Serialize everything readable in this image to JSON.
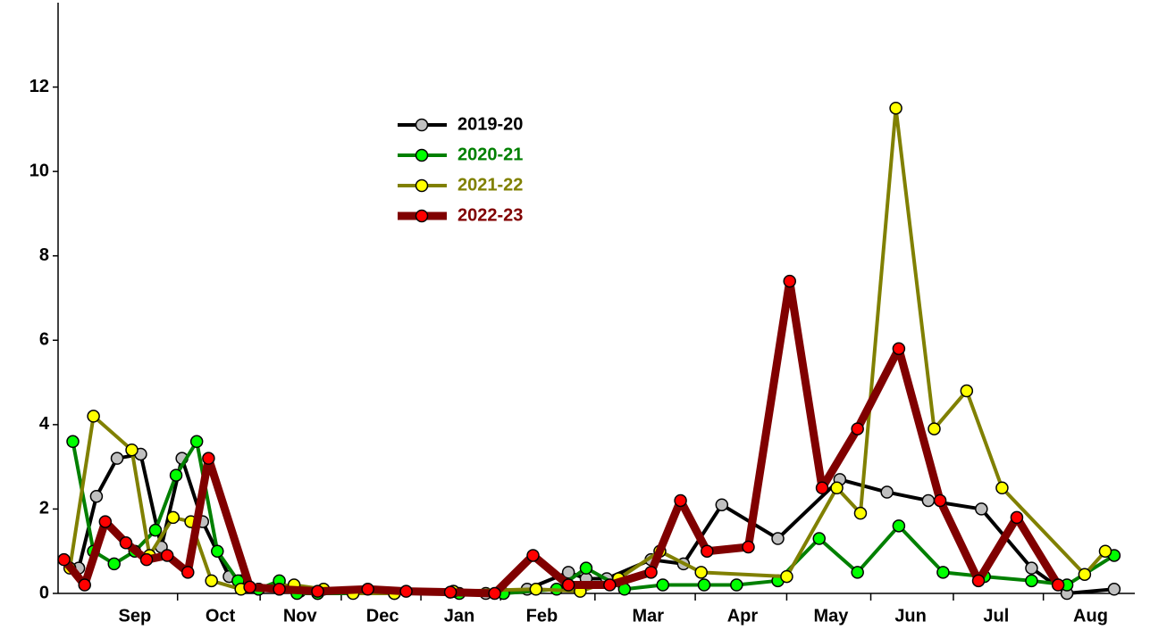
{
  "chart_data": {
    "type": "line",
    "xlim": [
      0,
      365
    ],
    "xticks": [
      {
        "value": 26,
        "label": "Sep"
      },
      {
        "value": 55,
        "label": "Oct"
      },
      {
        "value": 82,
        "label": "Nov"
      },
      {
        "value": 110,
        "label": "Dec"
      },
      {
        "value": 136,
        "label": "Jan"
      },
      {
        "value": 164,
        "label": "Feb"
      },
      {
        "value": 200,
        "label": "Mar"
      },
      {
        "value": 232,
        "label": "Apr"
      },
      {
        "value": 262,
        "label": "May"
      },
      {
        "value": 289,
        "label": "Jun"
      },
      {
        "value": 318,
        "label": "Jul"
      },
      {
        "value": 350,
        "label": "Aug"
      }
    ],
    "ylim": [
      0,
      14
    ],
    "yticks": [
      0,
      2,
      4,
      6,
      8,
      10,
      12
    ],
    "legend": "upper-center",
    "series": [
      {
        "name": "2019-20",
        "color": "#000000",
        "marker_color": "#c0c0c0",
        "line_width": 4,
        "x": [
          7,
          13,
          20,
          28,
          35,
          42,
          49,
          58,
          62,
          68,
          75,
          82,
          88,
          134,
          145,
          159,
          173,
          179,
          186,
          201,
          212,
          225,
          244,
          265,
          281,
          295,
          313,
          330,
          342,
          358
        ],
        "values": [
          0.6,
          2.3,
          3.2,
          3.3,
          1.1,
          3.2,
          1.7,
          0.4,
          0.3,
          0.1,
          0.1,
          0.05,
          0,
          0.05,
          0,
          0.1,
          0.5,
          0.35,
          0.35,
          0.8,
          0.7,
          2.1,
          1.3,
          2.7,
          2.4,
          2.2,
          2.0,
          0.6,
          0,
          0.1
        ]
      },
      {
        "name": "2020-21",
        "color": "#008000",
        "marker_color": "#00ff00",
        "line_width": 4,
        "x": [
          5,
          12,
          19,
          26,
          33,
          40,
          47,
          54,
          61,
          68,
          75,
          81,
          88,
          114,
          136,
          151,
          169,
          179,
          192,
          205,
          219,
          230,
          244,
          258,
          271,
          285,
          300,
          314,
          330,
          342,
          358
        ],
        "values": [
          3.6,
          1.0,
          0.7,
          1.0,
          1.5,
          2.8,
          3.6,
          1.0,
          0.3,
          0.1,
          0.3,
          0,
          0,
          0,
          0,
          0,
          0.1,
          0.6,
          0.1,
          0.2,
          0.2,
          0.2,
          0.3,
          1.3,
          0.5,
          1.6,
          0.5,
          0.4,
          0.3,
          0.2,
          0.9
        ]
      },
      {
        "name": "2021-22",
        "color": "#808000",
        "marker_color": "#ffff00",
        "line_width": 4,
        "x": [
          4,
          12,
          25,
          31,
          39,
          45,
          52,
          62,
          80,
          90,
          100,
          114,
          134,
          162,
          177,
          190,
          204,
          218,
          247,
          264,
          272,
          284,
          297,
          308,
          320,
          348,
          355
        ],
        "values": [
          0.6,
          4.2,
          3.4,
          0.9,
          1.8,
          1.7,
          0.3,
          0.1,
          0.2,
          0.1,
          0,
          0,
          0.05,
          0.1,
          0.05,
          0.35,
          1.0,
          0.5,
          0.4,
          2.5,
          1.9,
          11.5,
          3.9,
          4.8,
          2.5,
          0.45,
          1.0
        ]
      },
      {
        "name": "2022-23",
        "color": "#800000",
        "marker_color": "#ff0000",
        "line_width": 9,
        "x": [
          2,
          9,
          16,
          23,
          30,
          37,
          44,
          51,
          65,
          75,
          88,
          105,
          118,
          133,
          148,
          161,
          173,
          187,
          201,
          211,
          220,
          234,
          248,
          259,
          271,
          285,
          299,
          312,
          325,
          339
        ],
        "values": [
          0.8,
          0.2,
          1.7,
          1.2,
          0.8,
          0.9,
          0.5,
          3.2,
          0.15,
          0.1,
          0.05,
          0.1,
          0.05,
          0.03,
          0,
          0.9,
          0.2,
          0.2,
          0.5,
          2.2,
          1.0,
          1.1,
          7.4,
          2.5,
          3.9,
          5.8,
          2.2,
          0.3,
          1.8,
          0.2
        ]
      }
    ]
  }
}
